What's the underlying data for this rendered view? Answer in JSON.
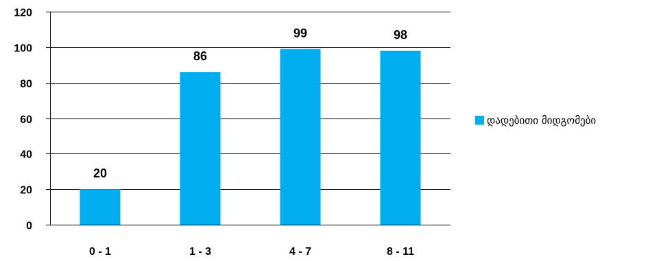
{
  "chart_data": {
    "type": "bar",
    "categories": [
      "0 - 1",
      "1 - 3",
      "4 - 7",
      "8 - 11"
    ],
    "series": [
      {
        "name": "დადებითი მიდგომები",
        "values": [
          20,
          86,
          99,
          98
        ],
        "color": "#00aeef"
      }
    ],
    "data_labels": [
      "20",
      "86",
      "99",
      "98"
    ],
    "y_ticks": [
      "0",
      "20",
      "40",
      "60",
      "80",
      "100",
      "120"
    ],
    "ylim": [
      0,
      120
    ],
    "grid": true,
    "legend_position": "right",
    "title": "",
    "xlabel": "",
    "ylabel": ""
  }
}
